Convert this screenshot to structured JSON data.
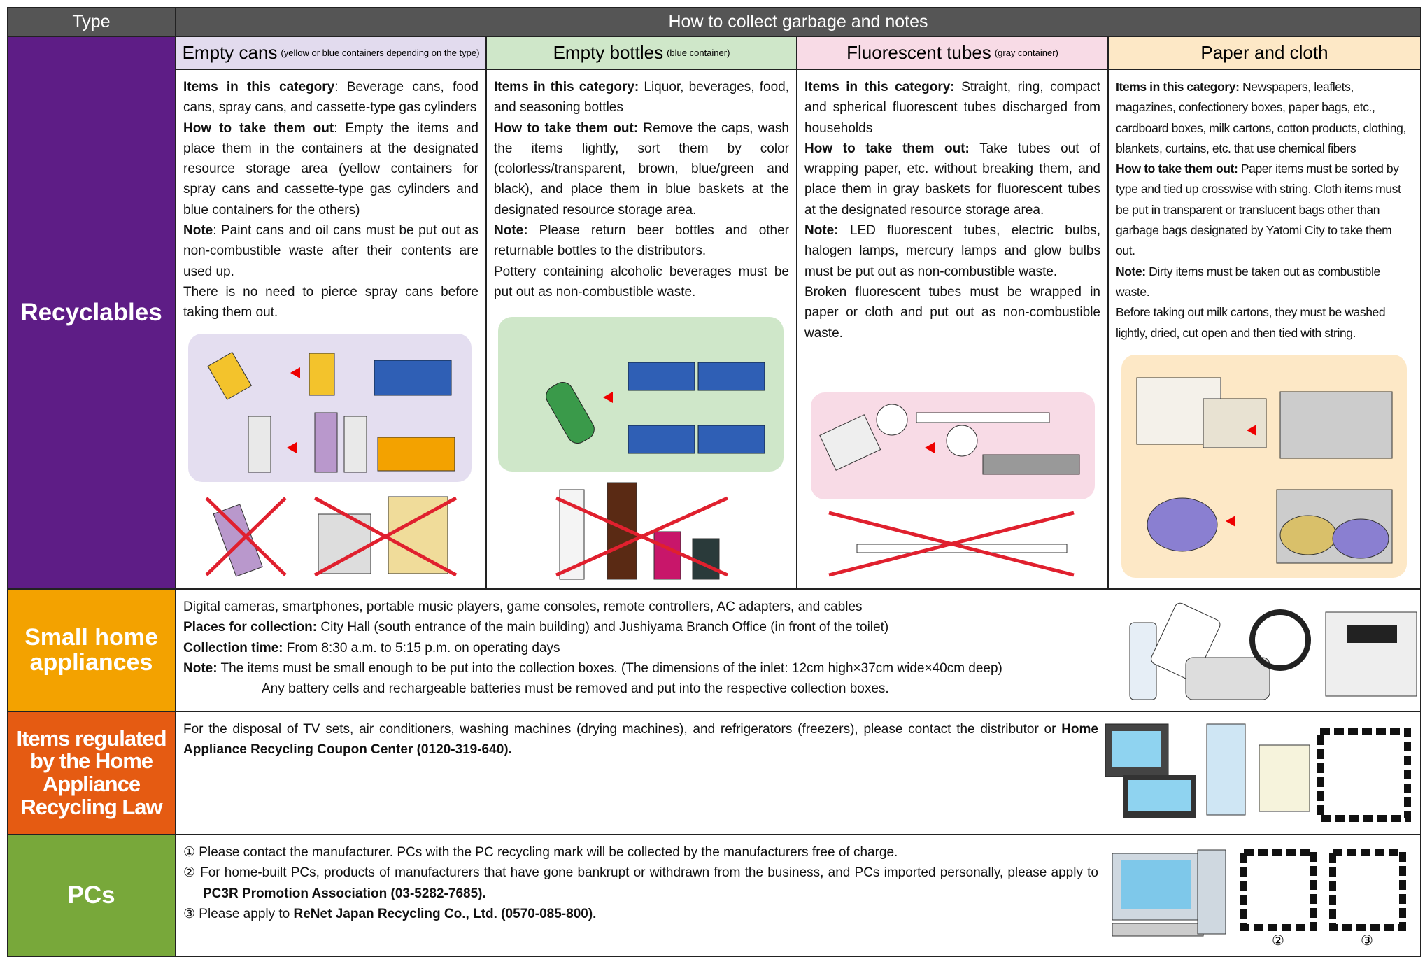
{
  "header": {
    "type": "Type",
    "how": "How to collect garbage and notes"
  },
  "recyclables": {
    "label": "Recyclables",
    "color": "#5e1d86",
    "columns": [
      {
        "title": "Empty cans",
        "note": "(yellow or blue containers depending on the type)",
        "color": "#e2dbee",
        "paragraphs": [
          [
            {
              "b": "Items in this category"
            },
            {
              "t": ": Beverage cans, food cans, spray cans, and cassette-type gas cylinders"
            }
          ],
          [
            {
              "b": "How to take them out"
            },
            {
              "t": ": Empty the items and place them in the containers at the designated resource storage area (yellow containers for spray cans and cassette-type gas cylinders and blue containers for the others)"
            }
          ],
          [
            {
              "b": "Note"
            },
            {
              "t": ": Paint cans and oil cans must be put out as non-combustible waste after their contents are used up."
            }
          ],
          [
            {
              "t": "There is no need to pierce spray cans before taking them out."
            }
          ]
        ]
      },
      {
        "title": "Empty bottles",
        "note": "(blue container)",
        "color": "#cfe7c9",
        "paragraphs": [
          [
            {
              "b": "Items in this category:"
            },
            {
              "t": " Liquor, beverages, food, and seasoning bottles"
            }
          ],
          [
            {
              "b": "How to take them out:"
            },
            {
              "t": " Remove the caps, wash the items lightly, sort them by color (colorless/transparent, brown, blue/green and black), and place them in blue baskets at the designated resource storage area."
            }
          ],
          [
            {
              "b": "Note:"
            },
            {
              "t": " Please return beer bottles and other returnable bottles to the distributors."
            }
          ],
          [
            {
              "t": "Pottery containing alcoholic beverages must be put out as non-combustible waste."
            }
          ]
        ]
      },
      {
        "title": "Fluorescent tubes",
        "note": "(gray container)",
        "color": "#f8dbe6",
        "paragraphs": [
          [
            {
              "b": "Items in this category:"
            },
            {
              "t": " Straight, ring, compact and spherical fluorescent tubes discharged from households"
            }
          ],
          [
            {
              "b": "How to take them out:"
            },
            {
              "t": " Take tubes out of wrapping paper, etc. without breaking them, and place them in gray baskets for fluorescent tubes at the designated resource storage area."
            }
          ],
          [
            {
              "b": "Note:"
            },
            {
              "t": " LED fluorescent tubes, electric bulbs, halogen lamps, mercury lamps and glow bulbs must be put out as non-combustible waste."
            }
          ],
          [
            {
              "t": "Broken fluorescent tubes must be wrapped in paper or cloth and put out as non-combustible waste."
            }
          ]
        ]
      },
      {
        "title": "Paper and cloth",
        "color": "#fde8c6",
        "paragraphs": [
          [
            {
              "b": "Items in this category:"
            },
            {
              "t": " Newspapers, leaflets, magazines, confectionery boxes, paper bags, etc., cardboard boxes, milk cartons, cotton products, clothing, blankets, curtains, etc. that use chemical fibers"
            }
          ],
          [
            {
              "b": "How to take them out:"
            },
            {
              "t": " Paper items must be sorted by type and tied up crosswise with string. Cloth items must be put in transparent or translucent bags other than garbage bags designated by Yatomi City to take them out."
            }
          ],
          [
            {
              "b": "Note:"
            },
            {
              "t": " Dirty items must be taken out as combustible waste."
            }
          ],
          [
            {
              "t": "Before taking out milk cartons, they must be washed lightly, dried, cut open and then tied with string."
            }
          ]
        ]
      }
    ]
  },
  "sections": [
    {
      "label": "Small home appliances",
      "color": "#f3a200",
      "paragraphs": [
        [
          {
            "t": "Digital cameras, smartphones, portable music players, game consoles, remote controllers, AC adapters, and cables"
          }
        ],
        [
          {
            "b": "Places for collection:"
          },
          {
            "t": " City Hall (south entrance of the main building) and Jushiyama Branch Office (in front of the toilet)"
          }
        ],
        [
          {
            "b": "Collection time:"
          },
          {
            "t": " From 8:30 a.m. to 5:15 p.m. on operating days"
          }
        ],
        [
          {
            "b": "Note:"
          },
          {
            "t": " The items must be small enough to be put into the collection boxes. (The dimensions of the inlet: 12cm high×37cm wide×40cm deep)"
          }
        ],
        [
          {
            "t": "Any battery cells and rechargeable batteries must be removed and put into the respective collection boxes."
          }
        ]
      ]
    },
    {
      "label": "Items regulated by the Home Appliance Recycling Law",
      "color": "#e55b12",
      "paragraphs": [
        [
          {
            "t": "For the disposal of TV sets, air conditioners, washing machines (drying machines), and refrigerators (freezers), please contact the distributor or "
          },
          {
            "b": "Home Appliance Recycling Coupon Center (0120-319-640)."
          }
        ]
      ]
    },
    {
      "label": "PCs",
      "color": "#78a83a",
      "paragraphs": [
        [
          {
            "t": "① Please contact the manufacturer. PCs with the PC recycling mark will be collected by the manufacturers free of charge."
          }
        ],
        [
          {
            "t": "② For home-built PCs, products of manufacturers that have gone bankrupt or withdrawn from the business, and PCs imported personally, please apply to "
          },
          {
            "b": "PC3R Promotion Association (03-5282-7685)."
          }
        ],
        [
          {
            "t": "③ Please apply to "
          },
          {
            "b": "ReNet Japan Recycling Co., Ltd. (0570-085-800)."
          }
        ]
      ],
      "qr_labels": [
        "②",
        "③"
      ]
    }
  ]
}
